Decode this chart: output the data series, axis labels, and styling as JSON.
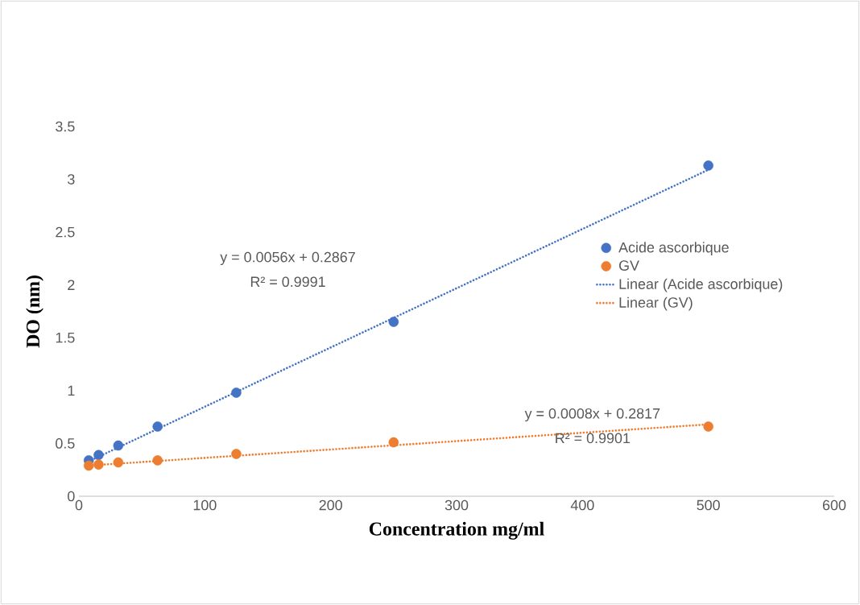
{
  "chart_data": {
    "type": "scatter",
    "xlabel": "Concentration  mg/ml",
    "ylabel": "DO (nm)",
    "xlim": [
      0,
      600
    ],
    "xticks": [
      0,
      100,
      200,
      300,
      400,
      500,
      600
    ],
    "ylim": [
      0,
      3.5
    ],
    "yticks": [
      0,
      0.5,
      1,
      1.5,
      2,
      2.5,
      3,
      3.5
    ],
    "grid": false,
    "legend": "right",
    "series": [
      {
        "name": "Acide ascorbique",
        "marker": "circle",
        "color": "#4472c4",
        "x": [
          7.8125,
          15.625,
          31.25,
          62.5,
          125,
          250,
          500
        ],
        "values": [
          0.34,
          0.39,
          0.48,
          0.66,
          0.98,
          1.65,
          3.13
        ]
      },
      {
        "name": "GV",
        "marker": "circle",
        "color": "#ed7d31",
        "x": [
          7.8125,
          15.625,
          31.25,
          62.5,
          125,
          250,
          500
        ],
        "values": [
          0.29,
          0.3,
          0.32,
          0.34,
          0.4,
          0.51,
          0.66
        ]
      },
      {
        "name": "Linear (Acide ascorbique)",
        "type": "line",
        "marker": "none",
        "line_style": "dotted",
        "color": "#4472c4",
        "x": [
          7.8125,
          500
        ],
        "values": [
          0.33,
          3.09
        ]
      },
      {
        "name": "Linear (GV)",
        "type": "line",
        "marker": "none",
        "line_style": "dotted",
        "color": "#ed7d31",
        "x": [
          7.8125,
          500
        ],
        "values": [
          0.29,
          0.68
        ]
      }
    ],
    "annotations": [
      "y = 0.0056x + 0.2867",
      "R² = 0.9991",
      "y = 0.0008x + 0.2817",
      "R² = 0.9901"
    ]
  }
}
